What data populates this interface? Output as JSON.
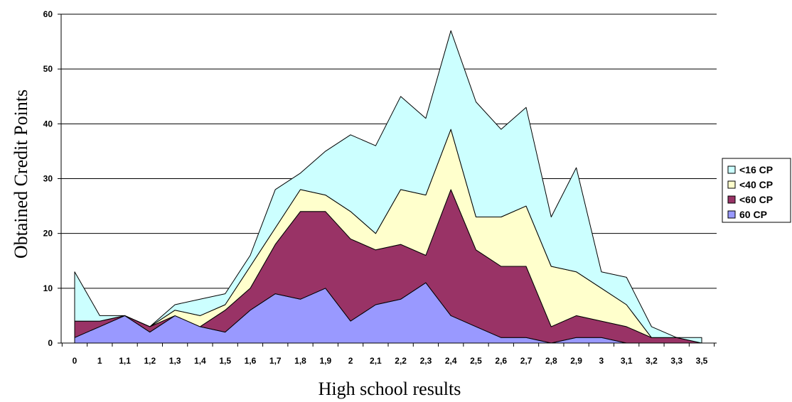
{
  "chart_data": {
    "type": "area",
    "stacked": true,
    "x": [
      "0",
      "1",
      "1,1",
      "1,2",
      "1,3",
      "1,4",
      "1,5",
      "1,6",
      "1,7",
      "1,8",
      "1,9",
      "2",
      "2,1",
      "2,2",
      "2,3",
      "2,4",
      "2,5",
      "2,6",
      "2,7",
      "2,8",
      "2,9",
      "3",
      "3,1",
      "3,2",
      "3,3",
      "3,5"
    ],
    "series": [
      {
        "name": "60 CP",
        "color": "#9999ff",
        "values": [
          1,
          3,
          5,
          2,
          5,
          3,
          2,
          6,
          9,
          8,
          10,
          4,
          7,
          8,
          11,
          5,
          3,
          1,
          1,
          0,
          1,
          1,
          0,
          0,
          0,
          0
        ]
      },
      {
        "name": "<60 CP",
        "color": "#993366",
        "values": [
          3,
          1,
          0,
          1,
          0,
          0,
          4,
          4,
          9,
          16,
          14,
          15,
          10,
          10,
          5,
          23,
          14,
          13,
          13,
          3,
          4,
          3,
          3,
          1,
          1,
          0
        ]
      },
      {
        "name": "<40 CP",
        "color": "#ffffcc",
        "values": [
          0,
          0,
          0,
          0,
          1,
          2,
          1,
          4,
          3,
          4,
          3,
          5,
          3,
          10,
          11,
          11,
          6,
          9,
          11,
          11,
          8,
          6,
          4,
          0,
          0,
          0
        ]
      },
      {
        "name": "<16 CP",
        "color": "#ccffff",
        "values": [
          9,
          1,
          0,
          0,
          1,
          3,
          2,
          2,
          7,
          3,
          8,
          14,
          16,
          17,
          14,
          18,
          21,
          16,
          18,
          9,
          19,
          3,
          5,
          2,
          0,
          1
        ]
      }
    ],
    "xlabel": "High school results",
    "ylabel": "Obtained Credit Points",
    "ylim": [
      0,
      60
    ],
    "yticks": [
      0,
      10,
      20,
      30,
      40,
      50,
      60
    ],
    "grid": true,
    "legend_position": "right"
  }
}
